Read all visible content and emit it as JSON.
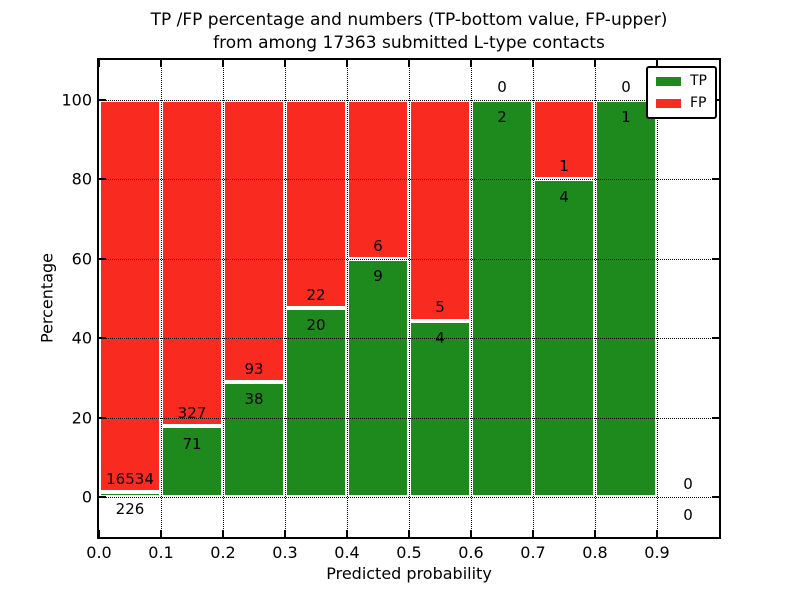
{
  "title": {
    "line1": "TP /FP percentage and numbers (TP-bottom value, FP-upper)",
    "line2": "from among 17363 submitted L-type contacts"
  },
  "chart_data": {
    "type": "bar",
    "stacked": true,
    "units": "percent",
    "title": "TP /FP percentage and numbers (TP-bottom value, FP-upper) from among 17363 submitted L-type contacts",
    "xlabel": "Predicted probability",
    "ylabel": "Percentage",
    "total_contacts": 17363,
    "xlim": [
      0.0,
      1.0
    ],
    "ylim": [
      -10,
      110
    ],
    "bin_width": 0.1,
    "grid": true,
    "legend_position": "upper right",
    "x_tick_labels": [
      "0.0",
      "0.1",
      "0.2",
      "0.3",
      "0.4",
      "0.5",
      "0.6",
      "0.7",
      "0.8",
      "0.9"
    ],
    "y_tick_labels": [
      "0",
      "20",
      "40",
      "60",
      "80",
      "100"
    ],
    "categories": [
      "0.0-0.1",
      "0.1-0.2",
      "0.2-0.3",
      "0.3-0.4",
      "0.4-0.5",
      "0.5-0.6",
      "0.6-0.7",
      "0.7-0.8",
      "0.8-0.9",
      "0.9-1.0"
    ],
    "series": [
      {
        "name": "TP",
        "color": "#1e8a1e",
        "values": [
          226,
          71,
          38,
          20,
          9,
          4,
          2,
          4,
          1,
          0
        ]
      },
      {
        "name": "FP",
        "color": "#f92a20",
        "values": [
          16534,
          327,
          93,
          22,
          6,
          5,
          0,
          1,
          0,
          0
        ]
      }
    ],
    "tp_percent": [
      1.35,
      17.84,
      29.01,
      47.62,
      60.0,
      44.44,
      100.0,
      80.0,
      100.0,
      null
    ]
  }
}
